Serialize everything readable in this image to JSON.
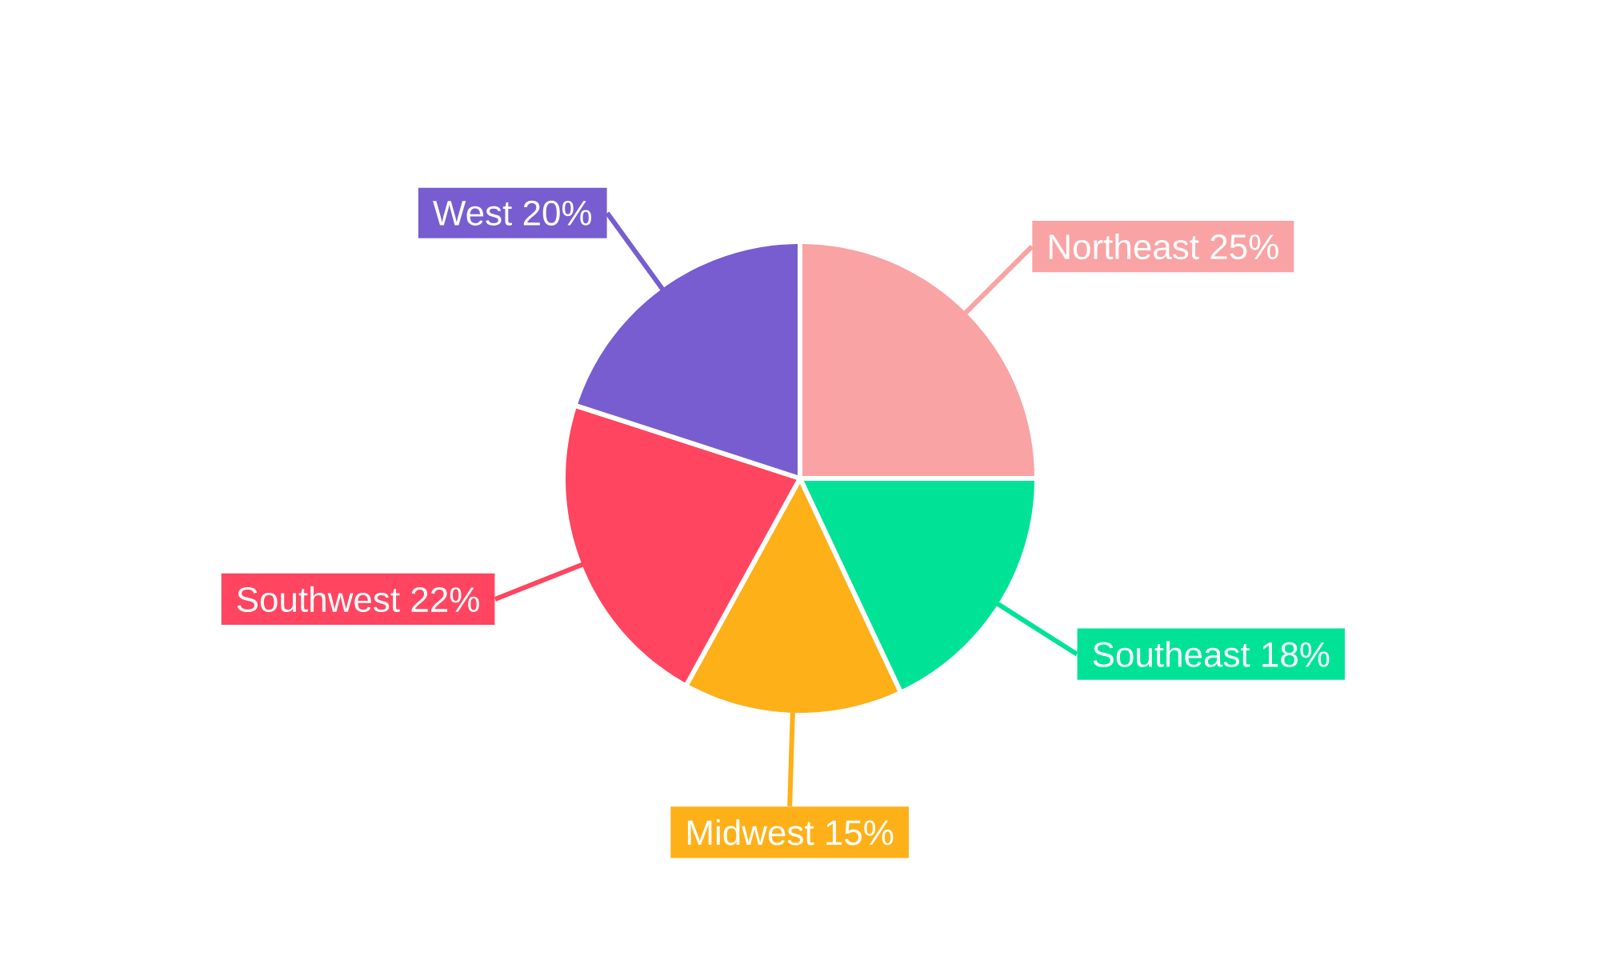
{
  "chart_data": {
    "type": "pie",
    "categories": [
      "Northeast",
      "Southeast",
      "Midwest",
      "Southwest",
      "West"
    ],
    "values": [
      25,
      18,
      15,
      22,
      20
    ],
    "value_labels": [
      "25%",
      "18%",
      "15%",
      "22%",
      "20%"
    ],
    "colors": [
      "#f9a3a4",
      "#00e396",
      "#feb019",
      "#ff4560",
      "#775dd0"
    ]
  }
}
